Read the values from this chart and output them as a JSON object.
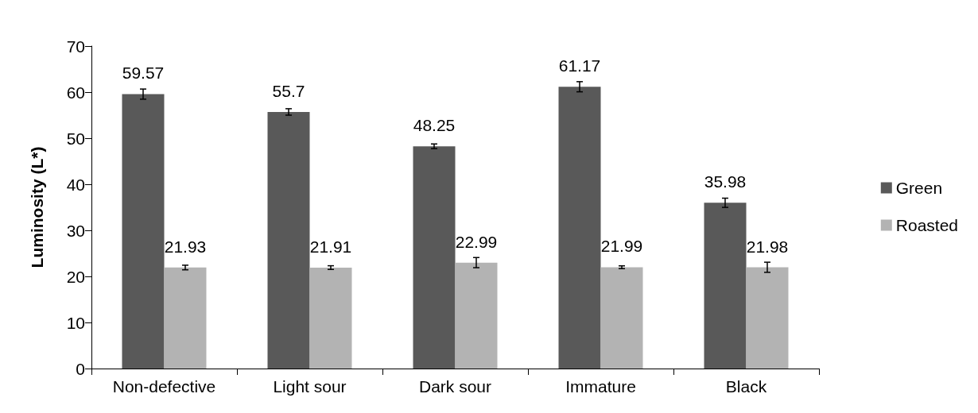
{
  "chart_data": {
    "type": "bar",
    "ylabel": "Luminosity (L*)",
    "categories": [
      "Non-defective",
      "Light sour",
      "Dark sour",
      "Immature",
      "Black"
    ],
    "series": [
      {
        "name": "Green",
        "color": "#595959",
        "values": [
          59.57,
          55.7,
          48.25,
          61.17,
          35.98
        ],
        "errors": [
          1.1,
          0.7,
          0.5,
          1.1,
          1.0
        ]
      },
      {
        "name": "Roasted",
        "color": "#b3b3b3",
        "values": [
          21.93,
          21.91,
          22.99,
          21.99,
          21.98
        ],
        "errors": [
          0.5,
          0.4,
          1.1,
          0.3,
          1.1
        ]
      }
    ],
    "ylim": [
      0,
      70
    ],
    "yticks": [
      0,
      10,
      20,
      30,
      40,
      50,
      60,
      70
    ],
    "grid": false,
    "legend": "right",
    "data_labels": true
  }
}
